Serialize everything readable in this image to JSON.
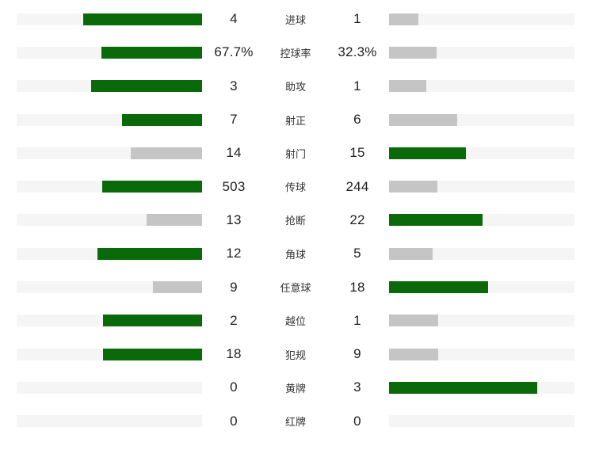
{
  "colors": {
    "leading_bar": "#0a6a0a",
    "trailing_bar": "#c5c5c5",
    "bar_track": "#f5f5f5",
    "value_text": "#1f1f1f",
    "label_text": "#333333"
  },
  "chart_data": {
    "type": "bar",
    "layout": "paired-horizontal-comparison",
    "title": "",
    "legend_position": "none",
    "grid": false,
    "max_fill_fraction": 0.8,
    "fill_rule": "fill = max_fill_fraction * value / (left + right); higher value is green, lower is gray",
    "categories": [
      "进球",
      "控球率",
      "助攻",
      "射正",
      "射门",
      "传球",
      "抢断",
      "角球",
      "任意球",
      "越位",
      "犯规",
      "黄牌",
      "红牌"
    ],
    "series": [
      {
        "name": "left-team",
        "values": [
          "4",
          "67.7%",
          "3",
          "7",
          "14",
          "503",
          "13",
          "12",
          "9",
          "2",
          "18",
          "0",
          "0"
        ]
      },
      {
        "name": "right-team",
        "values": [
          "1",
          "32.3%",
          "1",
          "6",
          "15",
          "244",
          "22",
          "5",
          "18",
          "1",
          "9",
          "3",
          "0"
        ]
      }
    ]
  }
}
